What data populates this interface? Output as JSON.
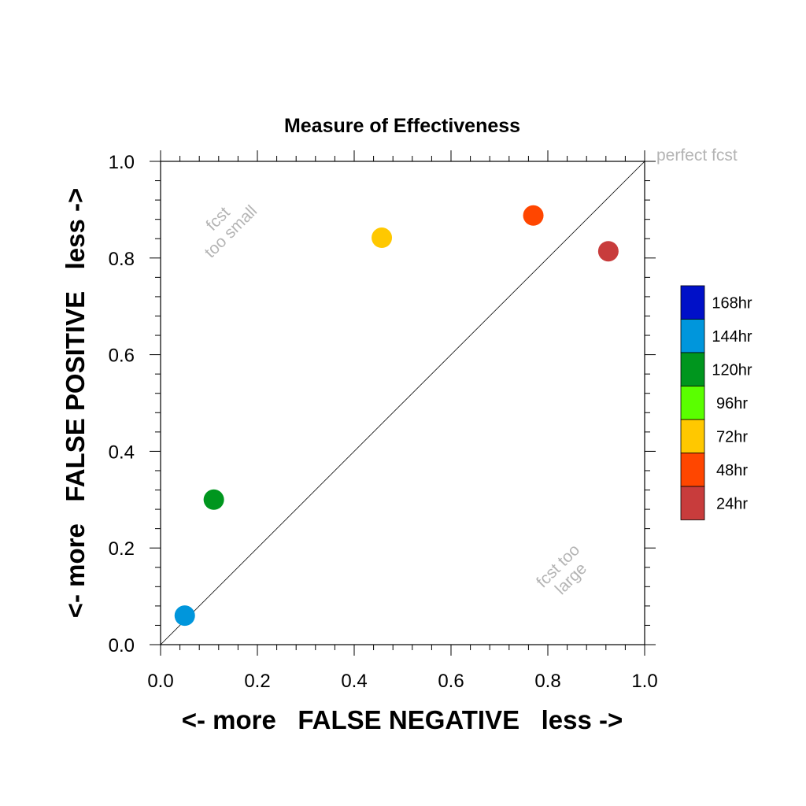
{
  "chart_data": {
    "type": "scatter",
    "title": "Measure of Effectiveness",
    "xlabel": "<- more   FALSE NEGATIVE   less ->",
    "ylabel": "<- more   FALSE POSITIVE   less ->",
    "xlim": [
      0,
      1
    ],
    "ylim": [
      0,
      1
    ],
    "x_ticks": [
      "0.0",
      "0.2",
      "0.4",
      "0.6",
      "0.8",
      "1.0"
    ],
    "y_ticks": [
      "0.0",
      "0.2",
      "0.4",
      "0.6",
      "0.8",
      "1.0"
    ],
    "grid": false,
    "reference_line": "y = x",
    "annotations": {
      "perfect": "perfect fcst",
      "too_small_1": "fcst",
      "too_small_2": "too small",
      "too_large_1": "fcst too",
      "too_large_2": "large"
    },
    "legend": {
      "position": "right",
      "entries": [
        {
          "label": "168hr",
          "color": "#0010c8"
        },
        {
          "label": "144hr",
          "color": "#0096dc"
        },
        {
          "label": "120hr",
          "color": "#00961e"
        },
        {
          "label": "96hr",
          "color": "#5aff00"
        },
        {
          "label": "72hr",
          "color": "#ffc800"
        },
        {
          "label": "48hr",
          "color": "#ff4600"
        },
        {
          "label": "24hr",
          "color": "#c83c3c"
        }
      ]
    },
    "points": [
      {
        "series": "144hr",
        "x": 0.05,
        "y": 0.06,
        "color": "#0096dc"
      },
      {
        "series": "120hr",
        "x": 0.11,
        "y": 0.3,
        "color": "#00961e"
      },
      {
        "series": "72hr",
        "x": 0.457,
        "y": 0.842,
        "color": "#ffc800"
      },
      {
        "series": "48hr",
        "x": 0.77,
        "y": 0.888,
        "color": "#ff4600"
      },
      {
        "series": "24hr",
        "x": 0.925,
        "y": 0.814,
        "color": "#c83c3c"
      }
    ]
  }
}
